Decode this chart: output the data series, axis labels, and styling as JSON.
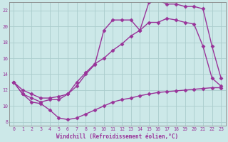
{
  "xlabel": "Windchill (Refroidissement éolien,°C)",
  "background_color": "#cce8e8",
  "line_color": "#993399",
  "xlim": [
    -0.5,
    23.5
  ],
  "ylim": [
    7.5,
    23.0
  ],
  "xticks": [
    0,
    1,
    2,
    3,
    4,
    5,
    6,
    7,
    8,
    9,
    10,
    11,
    12,
    13,
    14,
    15,
    16,
    17,
    18,
    19,
    20,
    21,
    22,
    23
  ],
  "yticks": [
    8,
    10,
    12,
    14,
    16,
    18,
    20,
    22
  ],
  "curve1_x": [
    0,
    1,
    2,
    3,
    4,
    5,
    6,
    7,
    8,
    9,
    10,
    11,
    12,
    13,
    14,
    15,
    16,
    17,
    18,
    19,
    20,
    21,
    22,
    23
  ],
  "curve1_y": [
    13.0,
    11.5,
    10.5,
    10.3,
    9.5,
    8.5,
    8.3,
    8.5,
    9.0,
    9.5,
    10.0,
    10.5,
    10.8,
    11.0,
    11.3,
    11.5,
    11.7,
    11.8,
    11.9,
    12.0,
    12.1,
    12.2,
    12.3,
    12.3
  ],
  "curve2_x": [
    0,
    1,
    2,
    3,
    4,
    5,
    6,
    7,
    8,
    9,
    10,
    11,
    12,
    13,
    14,
    15,
    16,
    17,
    18,
    19,
    20,
    21,
    22,
    23
  ],
  "curve2_y": [
    13.0,
    12.0,
    11.5,
    11.0,
    11.0,
    11.2,
    11.5,
    13.0,
    14.2,
    15.3,
    16.0,
    17.0,
    17.8,
    18.8,
    19.5,
    20.5,
    20.5,
    21.0,
    20.8,
    20.5,
    20.3,
    17.5,
    13.5,
    12.5
  ],
  "curve3_x": [
    0,
    1,
    2,
    3,
    4,
    5,
    6,
    7,
    8,
    9,
    10,
    11,
    12,
    13,
    14,
    15,
    16,
    17,
    18,
    19,
    20,
    21,
    22,
    23
  ],
  "curve3_y": [
    13.0,
    11.5,
    11.0,
    10.5,
    10.8,
    10.8,
    11.5,
    12.5,
    14.0,
    15.2,
    19.5,
    20.8,
    20.8,
    20.8,
    19.5,
    23.0,
    23.3,
    22.8,
    22.8,
    22.5,
    22.5,
    22.2,
    17.5,
    13.5
  ],
  "grid_color": "#aacccc",
  "marker": "D",
  "markersize": 2.5,
  "linewidth": 1.0
}
